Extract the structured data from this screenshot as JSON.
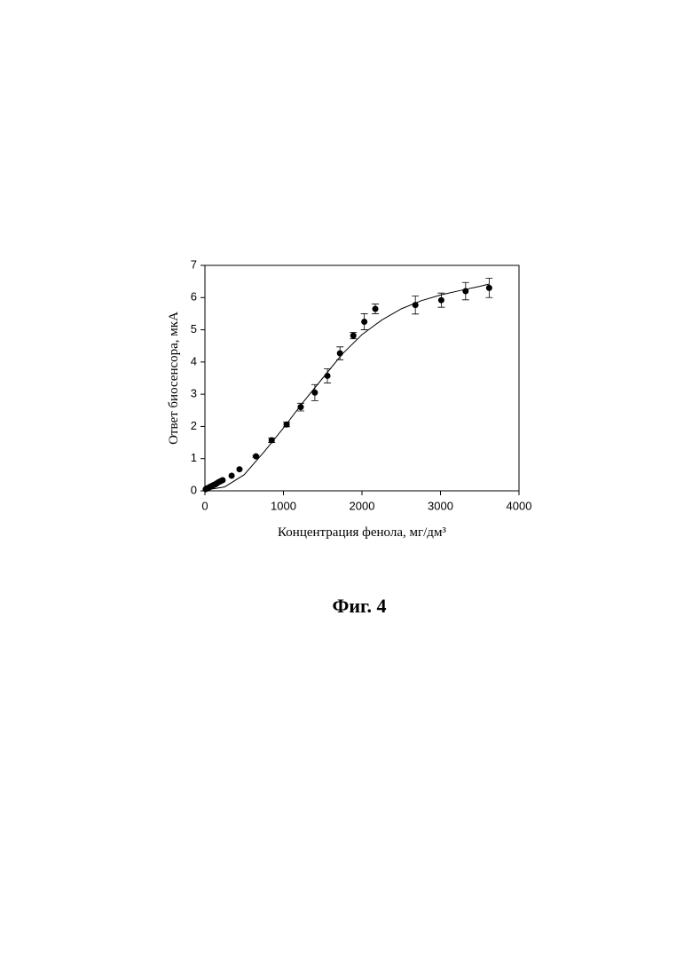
{
  "chart_data": {
    "type": "scatter",
    "xlabel": "Концентрация фенола, мг/дм³",
    "ylabel": "Ответ биосенсора, мкА",
    "caption": "Фиг. 4",
    "xlim": [
      0,
      4000
    ],
    "xticks": [
      0,
      1000,
      2000,
      3000,
      4000
    ],
    "ylim": [
      0,
      7
    ],
    "yticks": [
      0,
      1,
      2,
      3,
      4,
      5,
      6,
      7
    ],
    "points": {
      "color": "#000000",
      "x": [
        10,
        30,
        50,
        70,
        90,
        110,
        130,
        150,
        175,
        200,
        225,
        340,
        440,
        650,
        850,
        1040,
        1220,
        1400,
        1560,
        1720,
        1890,
        2030,
        2170,
        2680,
        3010,
        3320,
        3620
      ],
      "values": [
        0.05,
        0.08,
        0.1,
        0.13,
        0.15,
        0.18,
        0.2,
        0.23,
        0.27,
        0.3,
        0.33,
        0.47,
        0.67,
        1.07,
        1.57,
        2.06,
        2.6,
        3.05,
        3.57,
        4.27,
        4.82,
        5.25,
        5.65,
        5.77,
        5.92,
        6.2,
        6.3
      ],
      "errors": [
        0,
        0,
        0,
        0,
        0,
        0,
        0,
        0,
        0,
        0,
        0,
        0,
        0,
        0.03,
        0.07,
        0.07,
        0.12,
        0.25,
        0.22,
        0.2,
        0.1,
        0.25,
        0.15,
        0.28,
        0.22,
        0.27,
        0.3
      ]
    },
    "fit": {
      "color": "#000000",
      "x": [
        0,
        250,
        500,
        750,
        1000,
        1250,
        1500,
        1750,
        2000,
        2250,
        2500,
        2750,
        3000,
        3250,
        3500,
        3620
      ],
      "values": [
        0.02,
        0.12,
        0.5,
        1.2,
        1.95,
        2.75,
        3.5,
        4.25,
        4.85,
        5.3,
        5.65,
        5.9,
        6.08,
        6.22,
        6.35,
        6.42
      ]
    }
  }
}
